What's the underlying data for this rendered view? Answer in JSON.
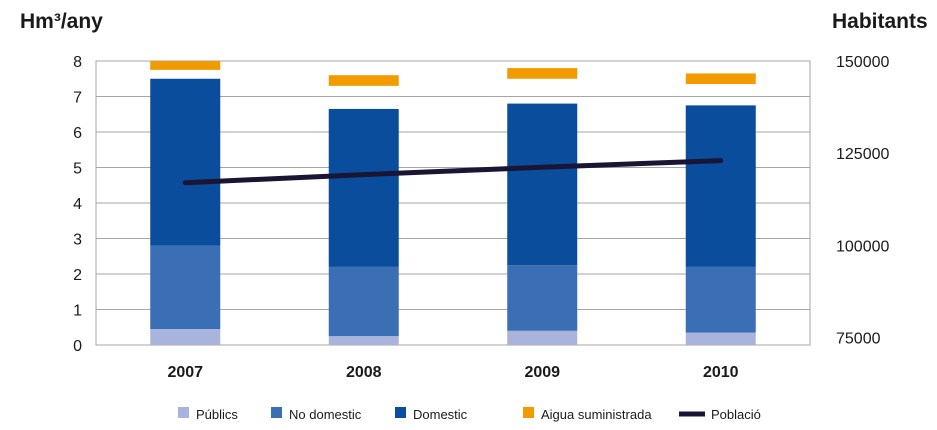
{
  "chart_data": {
    "type": "bar",
    "stacked": true,
    "categories": [
      "2007",
      "2008",
      "2009",
      "2010"
    ],
    "ylabel_left": "Hm³/any",
    "ylabel_right": "Habitants",
    "ylim": [
      0,
      8
    ],
    "yticks": [
      0,
      1,
      2,
      3,
      4,
      5,
      6,
      7,
      8
    ],
    "y2lim": [
      73000,
      150000
    ],
    "y2ticks": [
      75000,
      100000,
      125000,
      150000
    ],
    "grid": true,
    "legend_position": "bottom",
    "series": [
      {
        "name": "Públics",
        "values": [
          0.45,
          0.25,
          0.4,
          0.35
        ],
        "color": "#a9b4dc"
      },
      {
        "name": "No domestic",
        "values": [
          2.35,
          1.95,
          1.85,
          1.85
        ],
        "color": "#3a6fb5"
      },
      {
        "name": "Domestic",
        "values": [
          4.7,
          4.45,
          4.55,
          4.55
        ],
        "color": "#0a4d9c"
      },
      {
        "name": "Aigua suministrada",
        "type": "range",
        "values": [
          [
            7.75,
            8.05
          ],
          [
            7.3,
            7.6
          ],
          [
            7.5,
            7.8
          ],
          [
            7.35,
            7.65
          ]
        ],
        "color": "#f29b00"
      },
      {
        "name": "Població",
        "type": "line",
        "axis": "right",
        "values": [
          117000,
          119200,
          121200,
          123000
        ],
        "color": "#1b1535"
      }
    ]
  }
}
